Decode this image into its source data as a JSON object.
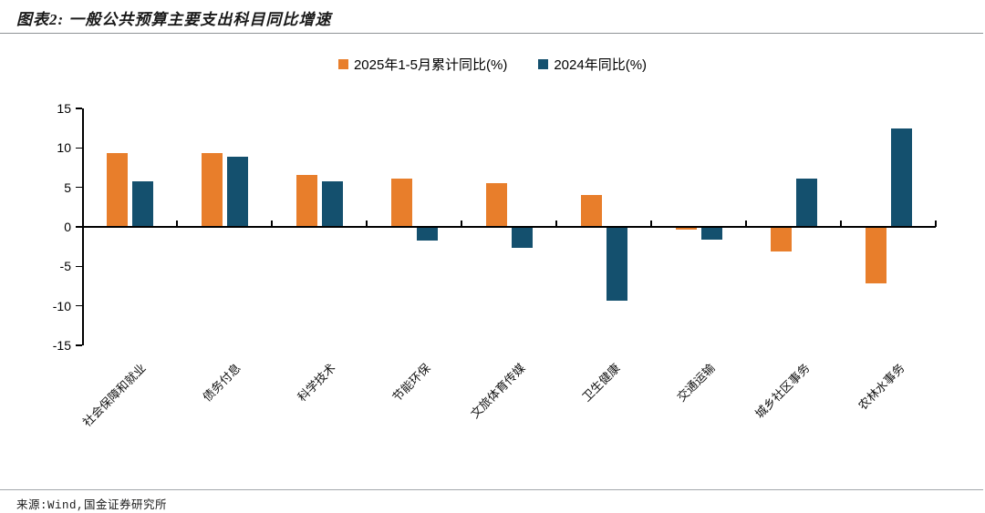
{
  "header": {
    "title": "图表2: 一般公共预算主要支出科目同比增速"
  },
  "footer": {
    "source": "来源:Wind,国金证券研究所"
  },
  "colors": {
    "series1": "#E87E2B",
    "series2": "#14506E",
    "axis": "#000000",
    "divider": "#8f9396",
    "title_text": "#1a1a1a"
  },
  "chart_data": {
    "type": "bar",
    "title": "一般公共预算主要支出科目同比增速",
    "categories": [
      "社会保障和就业",
      "债务付息",
      "科学技术",
      "节能环保",
      "文旅体育传媒",
      "卫生健康",
      "交通运输",
      "城乡社区事务",
      "农林水事务"
    ],
    "series": [
      {
        "name": "2025年1-5月累计同比(%)",
        "color": "#E87E2B",
        "values": [
          9.2,
          9.2,
          6.5,
          6.0,
          5.4,
          3.9,
          -0.2,
          -3.0,
          -7.0
        ]
      },
      {
        "name": "2024年同比(%)",
        "color": "#14506E",
        "values": [
          5.6,
          8.8,
          5.6,
          -1.6,
          -2.5,
          -9.2,
          -1.5,
          6.0,
          12.4
        ]
      }
    ],
    "xlabel": "",
    "ylabel": "",
    "ylim": [
      -15,
      15
    ],
    "yticks": [
      15,
      10,
      5,
      0,
      -5,
      -10,
      -15
    ],
    "grid": false,
    "legend_position": "top-center"
  }
}
